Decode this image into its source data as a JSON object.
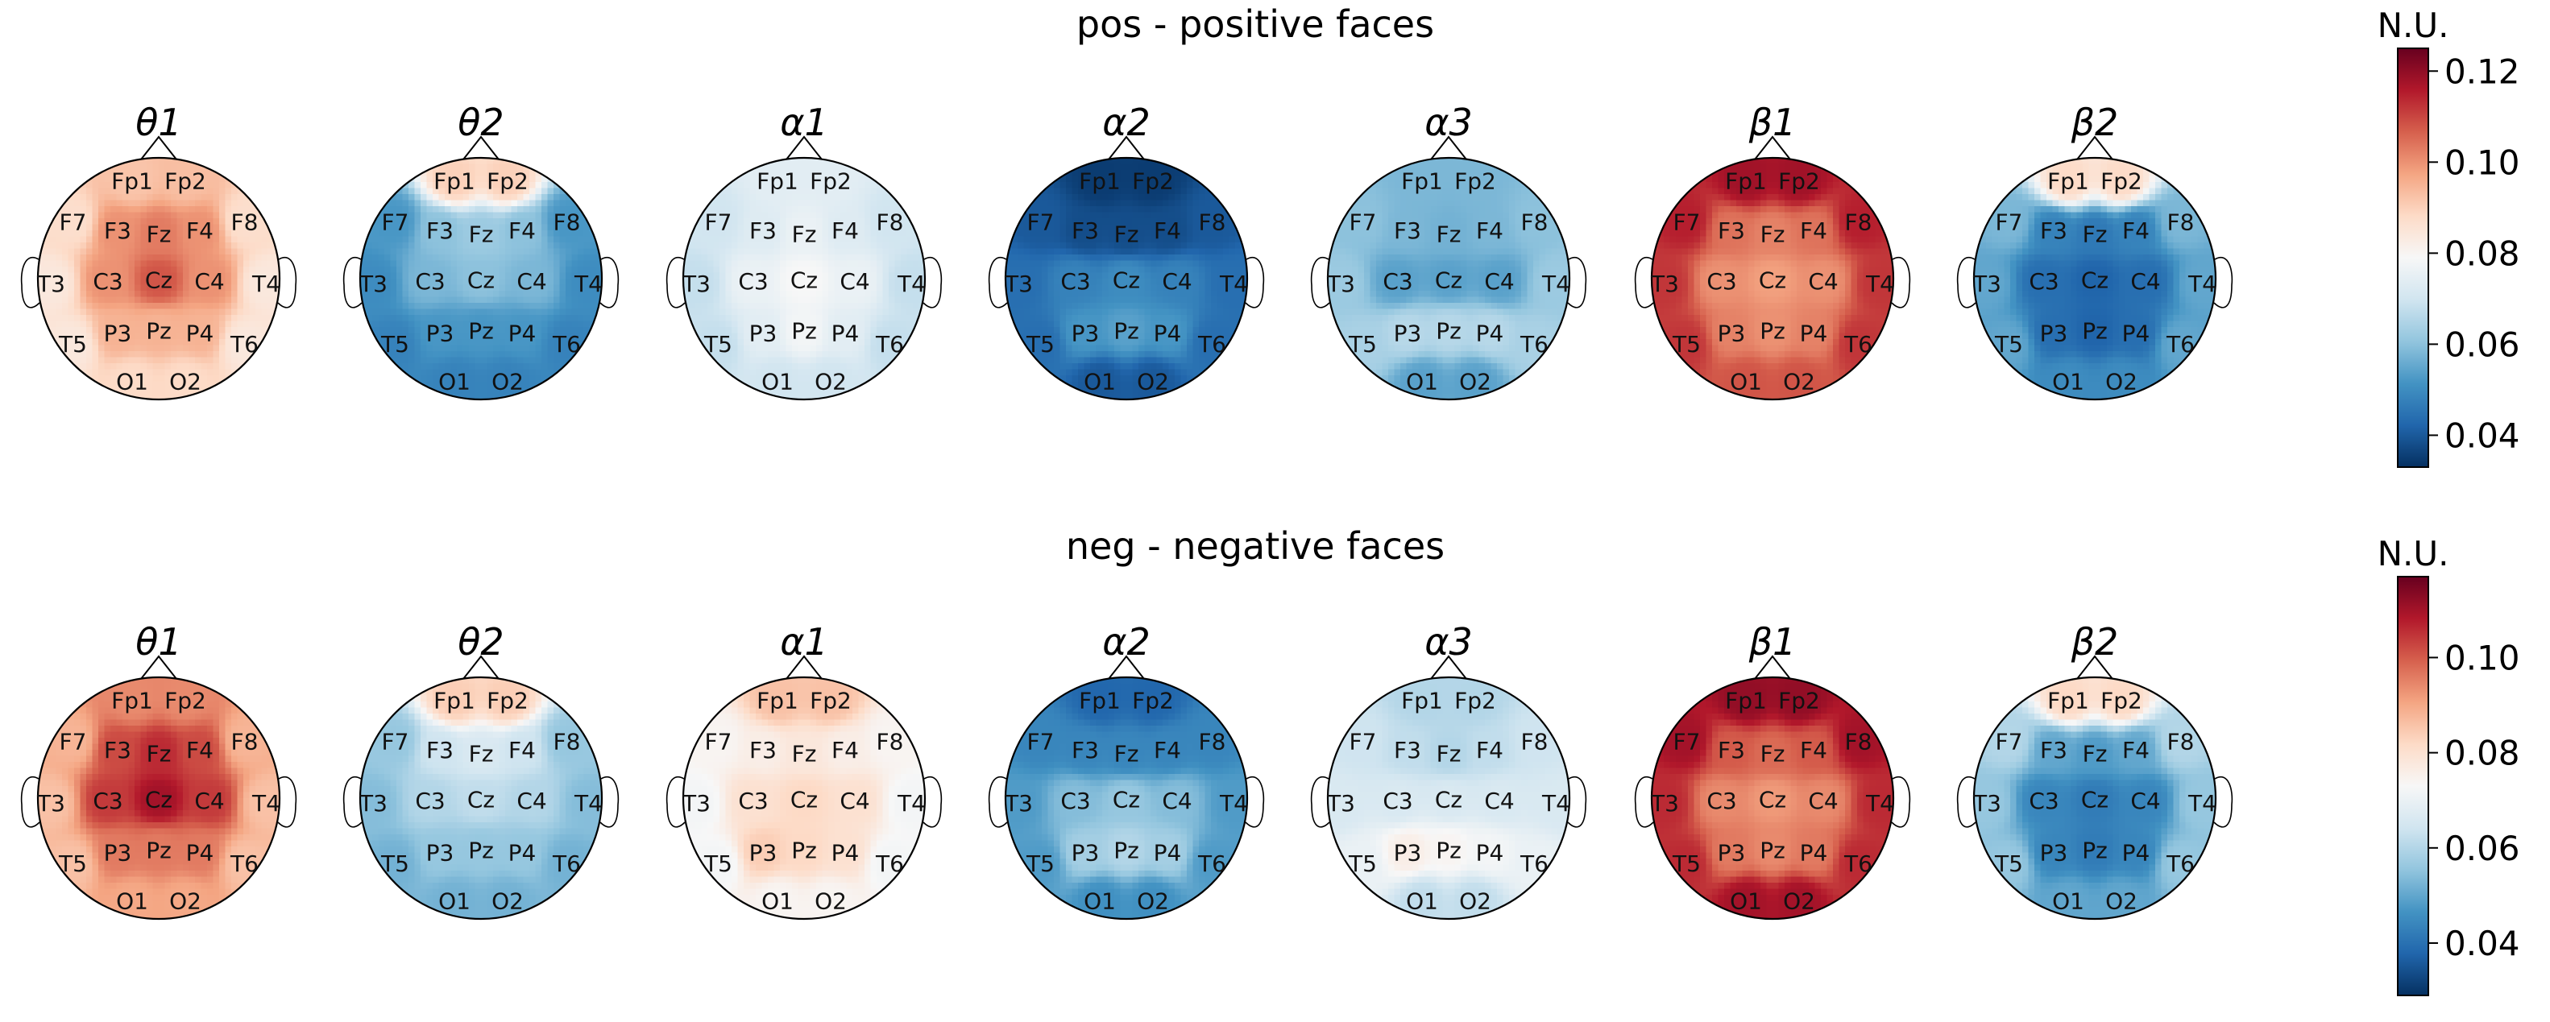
{
  "chart_data": [
    {
      "type": "heatmap",
      "title": "pos - positive faces",
      "colorbar": {
        "label": "N.U.",
        "vmin": 0.033,
        "vmax": 0.125,
        "ticks": [
          "0.04",
          "0.06",
          "0.08",
          "0.10",
          "0.12"
        ],
        "colormap": "RdBu_r"
      },
      "electrodes": [
        "Fp1",
        "Fp2",
        "F7",
        "F3",
        "Fz",
        "F4",
        "F8",
        "T3",
        "C3",
        "Cz",
        "C4",
        "T4",
        "T5",
        "P3",
        "Pz",
        "P4",
        "T6",
        "O1",
        "O2"
      ],
      "bands": [
        {
          "name": "θ1",
          "values": [
            0.092,
            0.093,
            0.087,
            0.1,
            0.103,
            0.1,
            0.087,
            0.084,
            0.1,
            0.108,
            0.1,
            0.084,
            0.084,
            0.095,
            0.095,
            0.095,
            0.084,
            0.088,
            0.088
          ]
        },
        {
          "name": "θ2",
          "values": [
            0.09,
            0.09,
            0.052,
            0.06,
            0.062,
            0.06,
            0.052,
            0.05,
            0.058,
            0.06,
            0.058,
            0.05,
            0.048,
            0.052,
            0.052,
            0.052,
            0.048,
            0.048,
            0.048
          ]
        },
        {
          "name": "α1",
          "values": [
            0.074,
            0.074,
            0.07,
            0.073,
            0.076,
            0.073,
            0.07,
            0.068,
            0.076,
            0.079,
            0.076,
            0.068,
            0.068,
            0.074,
            0.078,
            0.074,
            0.068,
            0.07,
            0.07
          ]
        },
        {
          "name": "α2",
          "values": [
            0.035,
            0.035,
            0.04,
            0.038,
            0.038,
            0.038,
            0.04,
            0.044,
            0.048,
            0.05,
            0.048,
            0.044,
            0.044,
            0.052,
            0.054,
            0.052,
            0.044,
            0.04,
            0.04
          ]
        },
        {
          "name": "α3",
          "values": [
            0.058,
            0.058,
            0.06,
            0.058,
            0.057,
            0.058,
            0.06,
            0.062,
            0.054,
            0.054,
            0.054,
            0.062,
            0.064,
            0.066,
            0.066,
            0.066,
            0.064,
            0.054,
            0.054
          ]
        },
        {
          "name": "β1",
          "values": [
            0.118,
            0.118,
            0.115,
            0.104,
            0.102,
            0.104,
            0.115,
            0.112,
            0.1,
            0.098,
            0.1,
            0.112,
            0.112,
            0.102,
            0.1,
            0.102,
            0.112,
            0.108,
            0.108
          ]
        },
        {
          "name": "β2",
          "values": [
            0.088,
            0.088,
            0.058,
            0.048,
            0.046,
            0.048,
            0.058,
            0.055,
            0.044,
            0.042,
            0.044,
            0.055,
            0.055,
            0.044,
            0.042,
            0.044,
            0.055,
            0.05,
            0.05
          ]
        }
      ]
    },
    {
      "type": "heatmap",
      "title": "neg - negative faces",
      "colorbar": {
        "label": "N.U.",
        "vmin": 0.029,
        "vmax": 0.117,
        "ticks": [
          "0.04",
          "0.06",
          "0.08",
          "0.10"
        ],
        "colormap": "RdBu_r"
      },
      "electrodes": [
        "Fp1",
        "Fp2",
        "F7",
        "F3",
        "Fz",
        "F4",
        "F8",
        "T3",
        "C3",
        "Cz",
        "C4",
        "T4",
        "T5",
        "P3",
        "Pz",
        "P4",
        "T6",
        "O1",
        "O2"
      ],
      "bands": [
        {
          "name": "θ1",
          "values": [
            0.094,
            0.094,
            0.088,
            0.102,
            0.106,
            0.102,
            0.088,
            0.086,
            0.104,
            0.11,
            0.104,
            0.086,
            0.086,
            0.096,
            0.096,
            0.096,
            0.086,
            0.09,
            0.09
          ]
        },
        {
          "name": "θ2",
          "values": [
            0.084,
            0.084,
            0.056,
            0.064,
            0.066,
            0.064,
            0.056,
            0.054,
            0.06,
            0.062,
            0.06,
            0.054,
            0.052,
            0.056,
            0.056,
            0.056,
            0.052,
            0.052,
            0.052
          ]
        },
        {
          "name": "α1",
          "values": [
            0.086,
            0.086,
            0.074,
            0.076,
            0.078,
            0.076,
            0.074,
            0.072,
            0.08,
            0.082,
            0.08,
            0.072,
            0.072,
            0.084,
            0.082,
            0.08,
            0.072,
            0.074,
            0.074
          ]
        },
        {
          "name": "α2",
          "values": [
            0.038,
            0.038,
            0.044,
            0.044,
            0.044,
            0.044,
            0.044,
            0.048,
            0.054,
            0.056,
            0.054,
            0.048,
            0.048,
            0.058,
            0.06,
            0.058,
            0.048,
            0.046,
            0.046
          ]
        },
        {
          "name": "α3",
          "values": [
            0.06,
            0.06,
            0.064,
            0.062,
            0.06,
            0.062,
            0.064,
            0.066,
            0.066,
            0.066,
            0.066,
            0.066,
            0.07,
            0.076,
            0.074,
            0.072,
            0.07,
            0.062,
            0.062
          ]
        },
        {
          "name": "β1",
          "values": [
            0.112,
            0.112,
            0.11,
            0.1,
            0.098,
            0.1,
            0.11,
            0.106,
            0.094,
            0.092,
            0.094,
            0.106,
            0.106,
            0.096,
            0.094,
            0.096,
            0.106,
            0.11,
            0.11
          ]
        },
        {
          "name": "β2",
          "values": [
            0.082,
            0.082,
            0.06,
            0.05,
            0.048,
            0.05,
            0.06,
            0.056,
            0.044,
            0.042,
            0.044,
            0.056,
            0.056,
            0.044,
            0.042,
            0.044,
            0.056,
            0.05,
            0.05
          ]
        }
      ]
    }
  ]
}
